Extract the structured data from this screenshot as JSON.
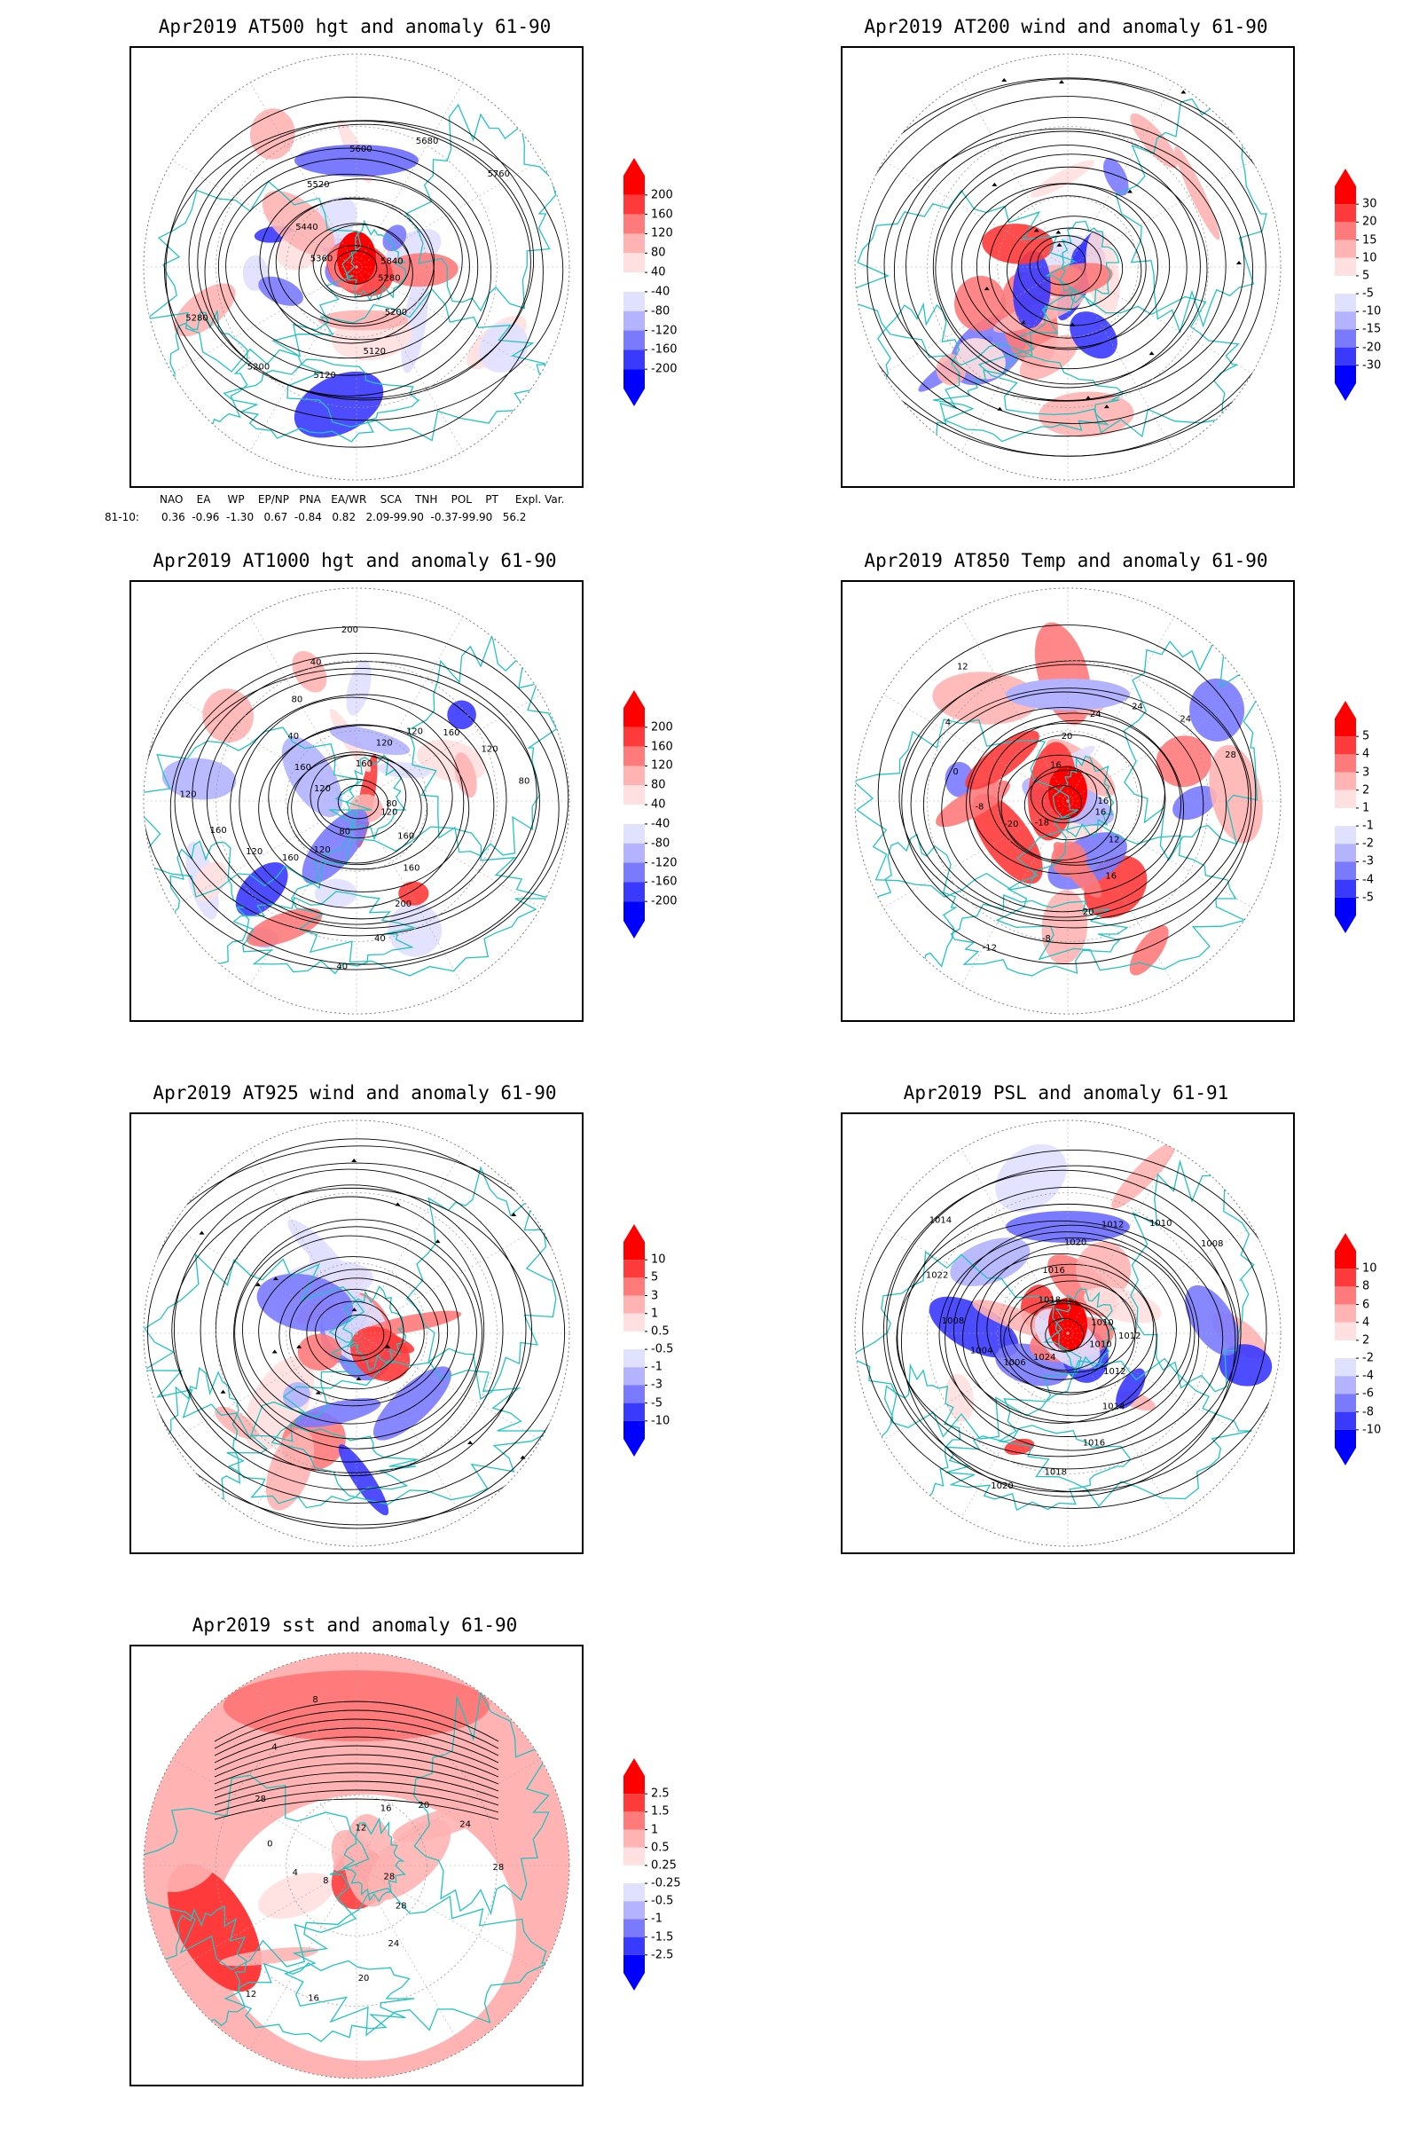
{
  "panels": [
    {
      "id": "at500",
      "title": "Apr2019 AT500 hgt and anomaly 61-90",
      "colorbar": [
        "200",
        "160",
        "120",
        "80",
        "40",
        "-40",
        "-80",
        "-120",
        "-160",
        "-200"
      ],
      "contour_labels": [
        "5280",
        "5200",
        "5120",
        "5120",
        "5200",
        "5280",
        "5360",
        "5440",
        "5520",
        "5600",
        "5680",
        "5760",
        "5840"
      ]
    },
    {
      "id": "at200",
      "title": "Apr2019 AT200 wind and anomaly 61-90",
      "colorbar": [
        "30",
        "20",
        "15",
        "10",
        "5",
        "-5",
        "-10",
        "-15",
        "-20",
        "-30"
      ]
    },
    {
      "id": "at1000",
      "title": "Apr2019 AT1000 hgt and anomaly 61-90",
      "colorbar": [
        "200",
        "160",
        "120",
        "80",
        "40",
        "-40",
        "-80",
        "-120",
        "-160",
        "-200"
      ],
      "contour_labels": [
        "120",
        "160",
        "160",
        "200",
        "40",
        "40",
        "80",
        "120",
        "160",
        "120",
        "160",
        "120",
        "120",
        "160",
        "40",
        "80",
        "40",
        "200",
        "160",
        "120",
        "120",
        "160",
        "120",
        "80",
        "80"
      ]
    },
    {
      "id": "at850",
      "title": "Apr2019 AT850 Temp and anomaly 61-90",
      "colorbar": [
        "5",
        "4",
        "3",
        "2",
        "1",
        "-1",
        "-2",
        "-3",
        "-4",
        "-5"
      ],
      "contour_labels": [
        "16",
        "12",
        "16",
        "20",
        "-8",
        "-12",
        "-18",
        "-20",
        "-8",
        "0",
        "4",
        "12",
        "16",
        "20",
        "24",
        "24",
        "24",
        "28",
        "16"
      ]
    },
    {
      "id": "at925",
      "title": "Apr2019 AT925 wind and anomaly 61-90",
      "colorbar": [
        "10",
        "5",
        "3",
        "1",
        "0.5",
        "-0.5",
        "-1",
        "-3",
        "-5",
        "-10"
      ]
    },
    {
      "id": "psl",
      "title": "Apr2019 PSL and anomaly 61-91",
      "colorbar": [
        "10",
        "8",
        "6",
        "4",
        "2",
        "-2",
        "-4",
        "-6",
        "-8",
        "-10"
      ],
      "contour_labels": [
        "1010",
        "1012",
        "1014",
        "1016",
        "1018",
        "1020",
        "1024",
        "1006",
        "1004",
        "1008",
        "1022",
        "1014",
        "1018",
        "1016",
        "1020",
        "1012",
        "1010",
        "1008",
        "1010",
        "1012"
      ]
    },
    {
      "id": "sst",
      "title": "Apr2019 sst and anomaly 61-90",
      "colorbar": [
        "2.5",
        "1.5",
        "1",
        "0.5",
        "0.25",
        "-0.25",
        "-0.5",
        "-1",
        "-1.5",
        "-2.5"
      ],
      "contour_labels": [
        "28",
        "28",
        "24",
        "20",
        "16",
        "12",
        "8",
        "4",
        "0",
        "28",
        "4",
        "8",
        "12",
        "16",
        "20",
        "24",
        "28"
      ]
    }
  ],
  "index_table": {
    "headers": "NAO    EA     WP    EP/NP   PNA   EA/WR    SCA    TNH    POL    PT     Expl. Var.",
    "row_label": "81-10:",
    "values": "0.36  -0.96  -1.30   0.67  -0.84   0.82   2.09-99.90  -0.37-99.90   56.2"
  },
  "colors": {
    "positive": [
      "#ff0000",
      "#ff3a3a",
      "#ff7a7a",
      "#ffb3b3",
      "#ffe0e0"
    ],
    "negative": [
      "#e0e0ff",
      "#b3b3ff",
      "#7a7aff",
      "#3a3aff",
      "#0000ff"
    ],
    "coast": "#22c3c3",
    "contour": "#000000"
  }
}
